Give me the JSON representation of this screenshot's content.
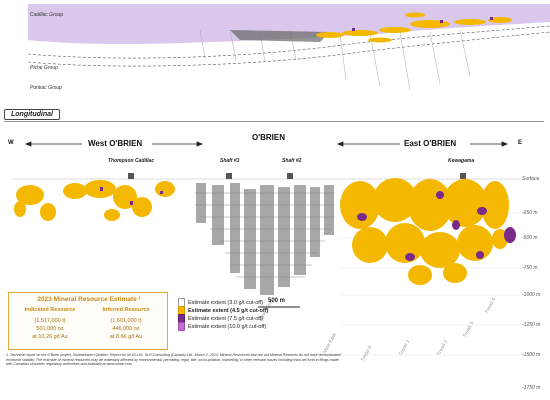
{
  "groups": {
    "cadillac": "Cadillac Group",
    "piche": "Piche Group",
    "pontiac": "Pontiac Group"
  },
  "panel_label": "Longitudinal",
  "compass": {
    "west": "W",
    "east": "E"
  },
  "sections": {
    "west": "West O'BRIEN",
    "center": "O'BRIEN",
    "east": "East O'BRIEN"
  },
  "shafts": {
    "thompson": "Thompson Cadillac",
    "shaft3": "Shaft #3",
    "shaft2": "Shaft #2",
    "kewagama": "Kewagama"
  },
  "depth_labels": [
    "Surface",
    "-250 m",
    "-500 m",
    "-750 m",
    "-1000 m",
    "-1250 m",
    "-1500 m",
    "-1750 m"
  ],
  "mine_labels": [
    "Mine West",
    "Mine East",
    "Trend 0",
    "Trend 1",
    "Trend 2",
    "Trend 3",
    "Trend 4"
  ],
  "scale_bar": "500 m",
  "resource": {
    "title": "2023 Mineral Resource Estimate ¹",
    "indicated": {
      "heading": "Indicated Resource",
      "tonnes": "(1,517,000 t)",
      "ounces": "501,000 oz",
      "grade": "at 10.26 g/t Au"
    },
    "inferred": {
      "heading": "Inferred Resource",
      "tonnes": "(1,601,000 t)",
      "ounces": "446,000 oz",
      "grade": "at 8.66 g/t Au"
    }
  },
  "legend": [
    {
      "label": "Estimate extent (3.0 g/t cut-off)",
      "color": "#ffffff",
      "border": "#999999"
    },
    {
      "label": "Estimate extent (4.5 g/t cut-off)",
      "color": "#f5b800",
      "border": "#d49a00"
    },
    {
      "label": "Estimate extent (7.5 g/t cut-off)",
      "color": "#7a2a8a",
      "border": "#5d1e6b"
    },
    {
      "label": "Estimate extent (10.0 g/t cut-off)",
      "color": "#c46bd0",
      "border": "#a050ad"
    }
  ],
  "footnote": "1. Technical report on the O'Brien project, Northwestern Québec; Report for NI 43-101, SLR Consulting (Canada) Ltd., March 2, 2023. Mineral Resources that are not Mineral Reserves do not have demonstrated economic viability. The estimate of mineral resources may be materially affected by environmental, permitting, legal, title, socio-political, marketing, or other relevant issues including risks set forth in filings made with Canadian securities regulatory authorities and available at www.sedar.com.",
  "colors": {
    "cadillac_fill": "#d9c7ec",
    "ore_gold": "#f5b800",
    "ore_purple": "#7a2a8a",
    "workings": "#9a9a9a"
  }
}
